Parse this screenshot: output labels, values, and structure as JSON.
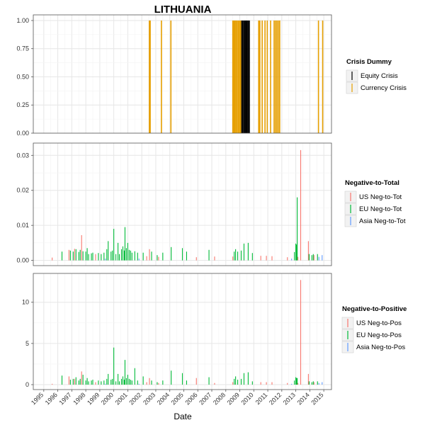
{
  "chart_data": {
    "type": "bar",
    "title": "LITHUANIA",
    "xlabel": "Date",
    "x_years": [
      "1995",
      "1996",
      "1997",
      "1998",
      "1999",
      "2000",
      "2001",
      "2002",
      "2003",
      "2004",
      "2005",
      "2006",
      "2007",
      "2008",
      "2009",
      "2010",
      "2011",
      "2012",
      "2013",
      "2014",
      "2015"
    ],
    "panels": [
      {
        "id": "crisis",
        "ylim": [
          0,
          1.05
        ],
        "y_ticks": [
          "0.00",
          "0.25",
          "0.50",
          "0.75",
          "1.00"
        ],
        "legend_title": "Crisis Dummy",
        "series": [
          {
            "name": "Equity Crisis",
            "color": "#000000",
            "points": [
              [
                2009.12,
                1
              ],
              [
                2009.2,
                1
              ],
              [
                2009.28,
                1
              ],
              [
                2009.36,
                1
              ],
              [
                2009.44,
                1
              ],
              [
                2009.52,
                1
              ],
              [
                2009.6,
                1
              ],
              [
                2009.68,
                1
              ]
            ]
          },
          {
            "name": "Currency Crisis",
            "color": "#E69F00",
            "points": [
              [
                2002.54,
                1
              ],
              [
                2002.6,
                1
              ],
              [
                2003.4,
                1
              ],
              [
                2004.08,
                1
              ],
              [
                2008.5,
                1
              ],
              [
                2008.58,
                1
              ],
              [
                2008.66,
                1
              ],
              [
                2008.74,
                1
              ],
              [
                2008.82,
                1
              ],
              [
                2008.9,
                1
              ],
              [
                2008.98,
                1
              ],
              [
                2009.06,
                1
              ],
              [
                2010.35,
                1
              ],
              [
                2010.43,
                1
              ],
              [
                2010.6,
                1
              ],
              [
                2010.8,
                1
              ],
              [
                2010.96,
                1
              ],
              [
                2011.2,
                1
              ],
              [
                2011.45,
                1
              ],
              [
                2011.55,
                1
              ],
              [
                2011.65,
                1
              ],
              [
                2011.75,
                1
              ],
              [
                2011.85,
                1
              ],
              [
                2014.62,
                1
              ],
              [
                2014.92,
                1
              ]
            ]
          }
        ]
      },
      {
        "id": "negtot",
        "ylim": [
          -0.0015,
          0.0335
        ],
        "y_ticks": [
          "0.00",
          "0.01",
          "0.02",
          "0.03"
        ],
        "legend_title": "Negative-to-Total",
        "series": [
          {
            "name": "US Neg-to-Tot",
            "color": "#F8766D",
            "points": [
              [
                1995.6,
                0.0008
              ],
              [
                1996.8,
                0.003
              ],
              [
                1997.2,
                0.0033
              ],
              [
                1997.7,
                0.0072
              ],
              [
                1998.7,
                0.0018
              ],
              [
                2002.35,
                0.0012
              ],
              [
                2002.55,
                0.0032
              ],
              [
                2003.2,
                0.001
              ],
              [
                2005.9,
                0.0009
              ],
              [
                2007.2,
                0.0011
              ],
              [
                2008.5,
                0.0011
              ],
              [
                2010.5,
                0.0013
              ],
              [
                2010.9,
                0.0013
              ],
              [
                2011.3,
                0.0012
              ],
              [
                2012.4,
                0.0009
              ],
              [
                2013.15,
                0.001
              ],
              [
                2013.35,
                0.0315
              ],
              [
                2013.9,
                0.0055
              ],
              [
                2014.3,
                0.0015
              ]
            ]
          },
          {
            "name": "EU Neg-to-Tot",
            "color": "#00BA38",
            "points": [
              [
                1996.3,
                0.0025
              ],
              [
                1996.9,
                0.0028
              ],
              [
                1997.1,
                0.0025
              ],
              [
                1997.3,
                0.0032
              ],
              [
                1997.5,
                0.0024
              ],
              [
                1997.6,
                0.003
              ],
              [
                1997.8,
                0.0026
              ],
              [
                1998.0,
                0.0025
              ],
              [
                1998.1,
                0.0035
              ],
              [
                1998.2,
                0.0018
              ],
              [
                1998.4,
                0.002
              ],
              [
                1998.5,
                0.0022
              ],
              [
                1998.9,
                0.0021
              ],
              [
                1999.1,
                0.0018
              ],
              [
                1999.3,
                0.0022
              ],
              [
                1999.5,
                0.0032
              ],
              [
                1999.6,
                0.0055
              ],
              [
                1999.8,
                0.0025
              ],
              [
                1999.9,
                0.0028
              ],
              [
                2000.0,
                0.009
              ],
              [
                2000.15,
                0.0018
              ],
              [
                2000.3,
                0.005
              ],
              [
                2000.4,
                0.0018
              ],
              [
                2000.55,
                0.0032
              ],
              [
                2000.65,
                0.004
              ],
              [
                2000.75,
                0.0028
              ],
              [
                2000.8,
                0.0095
              ],
              [
                2000.9,
                0.0035
              ],
              [
                2001.0,
                0.005
              ],
              [
                2001.1,
                0.003
              ],
              [
                2001.2,
                0.0028
              ],
              [
                2001.3,
                0.0022
              ],
              [
                2001.5,
                0.0026
              ],
              [
                2001.7,
                0.0022
              ],
              [
                2002.1,
                0.0022
              ],
              [
                2002.7,
                0.0025
              ],
              [
                2003.1,
                0.0015
              ],
              [
                2003.5,
                0.0022
              ],
              [
                2004.1,
                0.0038
              ],
              [
                2004.9,
                0.0035
              ],
              [
                2005.2,
                0.0025
              ],
              [
                2006.8,
                0.003
              ],
              [
                2008.6,
                0.0025
              ],
              [
                2008.7,
                0.0032
              ],
              [
                2008.85,
                0.0025
              ],
              [
                2009.1,
                0.0028
              ],
              [
                2009.3,
                0.0048
              ],
              [
                2009.6,
                0.005
              ],
              [
                2009.9,
                0.0021
              ],
              [
                2012.9,
                0.0024
              ],
              [
                2013.0,
                0.0048
              ],
              [
                2013.05,
                0.0045
              ],
              [
                2013.1,
                0.018
              ],
              [
                2013.95,
                0.0018
              ],
              [
                2014.15,
                0.0015
              ],
              [
                2014.25,
                0.0018
              ],
              [
                2014.55,
                0.0018
              ]
            ]
          },
          {
            "name": "Asia Neg-to-Tot",
            "color": "#619CFF",
            "points": [
              [
                1999.4,
                0.0005
              ],
              [
                2001.8,
                0.0005
              ],
              [
                2012.7,
                0.0005
              ],
              [
                2014.65,
                0.001
              ],
              [
                2014.88,
                0.0015
              ]
            ]
          }
        ]
      },
      {
        "id": "negpos",
        "ylim": [
          -0.6,
          13.5
        ],
        "y_ticks": [
          "0",
          "5",
          "10"
        ],
        "legend_title": "Negative-to-Positive",
        "series": [
          {
            "name": "US Neg-to-Pos",
            "color": "#F8766D",
            "points": [
              [
                1995.6,
                0.1
              ],
              [
                1996.8,
                1.0
              ],
              [
                1997.2,
                0.7
              ],
              [
                1997.7,
                1.6
              ],
              [
                1998.7,
                0.3
              ],
              [
                2002.35,
                0.3
              ],
              [
                2002.55,
                0.8
              ],
              [
                2003.2,
                0.2
              ],
              [
                2005.9,
                0.8
              ],
              [
                2007.2,
                0.2
              ],
              [
                2008.5,
                0.3
              ],
              [
                2010.5,
                0.3
              ],
              [
                2010.9,
                0.3
              ],
              [
                2011.3,
                0.3
              ],
              [
                2012.4,
                0.2
              ],
              [
                2013.15,
                0.2
              ],
              [
                2013.35,
                12.7
              ],
              [
                2013.9,
                1.3
              ],
              [
                2014.3,
                0.3
              ]
            ]
          },
          {
            "name": "EU Neg-to-Pos",
            "color": "#00BA38",
            "points": [
              [
                1996.3,
                1.1
              ],
              [
                1996.9,
                0.6
              ],
              [
                1997.1,
                0.7
              ],
              [
                1997.3,
                0.9
              ],
              [
                1997.5,
                0.5
              ],
              [
                1997.6,
                0.7
              ],
              [
                1997.8,
                1.2
              ],
              [
                1998.0,
                0.5
              ],
              [
                1998.1,
                0.8
              ],
              [
                1998.2,
                0.4
              ],
              [
                1998.4,
                0.5
              ],
              [
                1998.5,
                0.6
              ],
              [
                1998.9,
                0.5
              ],
              [
                1999.1,
                0.4
              ],
              [
                1999.3,
                0.5
              ],
              [
                1999.5,
                0.7
              ],
              [
                1999.6,
                1.3
              ],
              [
                1999.8,
                0.6
              ],
              [
                1999.9,
                0.7
              ],
              [
                2000.0,
                4.5
              ],
              [
                2000.15,
                0.4
              ],
              [
                2000.3,
                1.3
              ],
              [
                2000.4,
                0.4
              ],
              [
                2000.55,
                0.7
              ],
              [
                2000.65,
                1.0
              ],
              [
                2000.75,
                0.6
              ],
              [
                2000.8,
                3.0
              ],
              [
                2000.9,
                0.8
              ],
              [
                2001.0,
                1.2
              ],
              [
                2001.1,
                0.7
              ],
              [
                2001.2,
                0.6
              ],
              [
                2001.3,
                0.5
              ],
              [
                2001.5,
                2.0
              ],
              [
                2001.7,
                0.5
              ],
              [
                2002.1,
                1.0
              ],
              [
                2002.7,
                0.5
              ],
              [
                2003.1,
                0.3
              ],
              [
                2003.5,
                0.5
              ],
              [
                2004.1,
                1.7
              ],
              [
                2004.9,
                1.4
              ],
              [
                2005.2,
                0.5
              ],
              [
                2006.8,
                0.9
              ],
              [
                2008.6,
                0.7
              ],
              [
                2008.7,
                1.0
              ],
              [
                2008.85,
                0.6
              ],
              [
                2009.1,
                0.7
              ],
              [
                2009.3,
                1.4
              ],
              [
                2009.6,
                1.5
              ],
              [
                2009.9,
                0.4
              ],
              [
                2012.9,
                0.5
              ],
              [
                2013.0,
                0.9
              ],
              [
                2013.05,
                0.8
              ],
              [
                2013.1,
                0.8
              ],
              [
                2013.95,
                0.4
              ],
              [
                2014.15,
                0.3
              ],
              [
                2014.25,
                0.4
              ],
              [
                2014.55,
                0.4
              ]
            ]
          },
          {
            "name": "Asia Neg-to-Pos",
            "color": "#619CFF",
            "points": [
              [
                1999.4,
                0.1
              ],
              [
                2001.8,
                0.1
              ],
              [
                2012.7,
                0.1
              ],
              [
                2014.65,
                0.2
              ],
              [
                2014.88,
                0.3
              ]
            ]
          }
        ]
      }
    ]
  }
}
